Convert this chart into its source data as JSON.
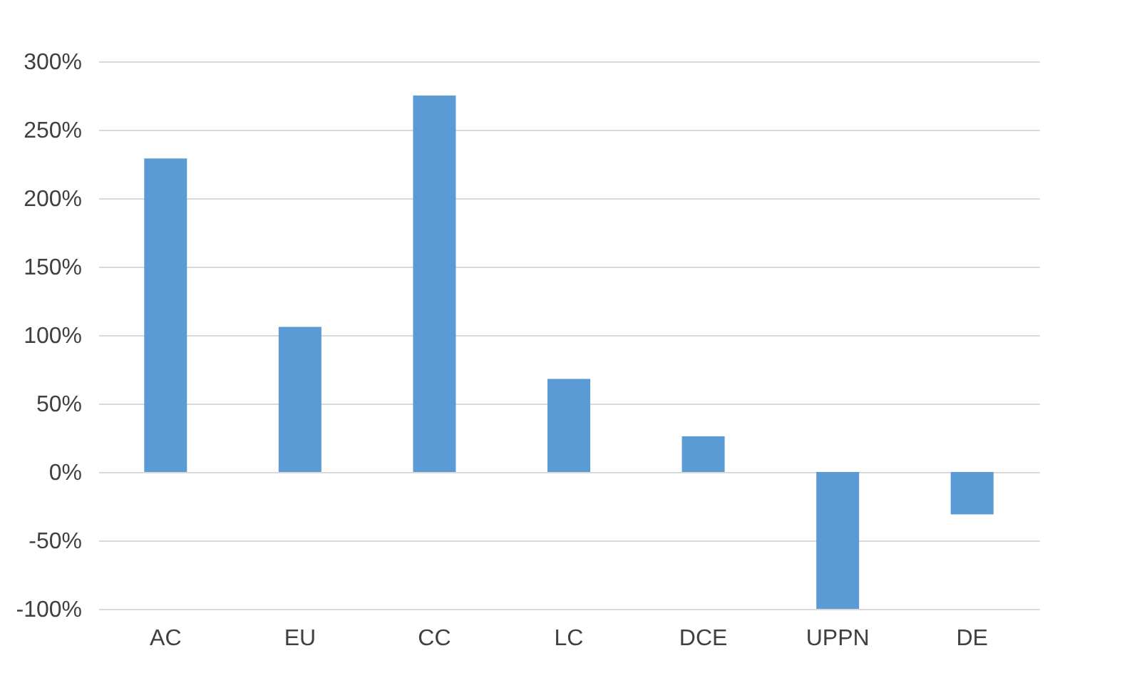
{
  "chart_data": {
    "type": "bar",
    "categories": [
      "AC",
      "EU",
      "CC",
      "LC",
      "DCE",
      "UPPN",
      "DE"
    ],
    "series": [
      {
        "color": "#5b9bd5",
        "values": [
          229,
          106,
          275,
          68,
          26,
          -100,
          -31
        ]
      }
    ],
    "ylim": [
      -100,
      300
    ],
    "yticks": [
      {
        "value": -100,
        "label": "-100%"
      },
      {
        "value": -50,
        "label": "-50%"
      },
      {
        "value": 0,
        "label": "0%"
      },
      {
        "value": 50,
        "label": "50%"
      },
      {
        "value": 100,
        "label": "100%"
      },
      {
        "value": 150,
        "label": "150%"
      },
      {
        "value": 200,
        "label": "200%"
      },
      {
        "value": 250,
        "label": "250%"
      },
      {
        "value": 300,
        "label": "300%"
      }
    ],
    "grid": "y"
  }
}
